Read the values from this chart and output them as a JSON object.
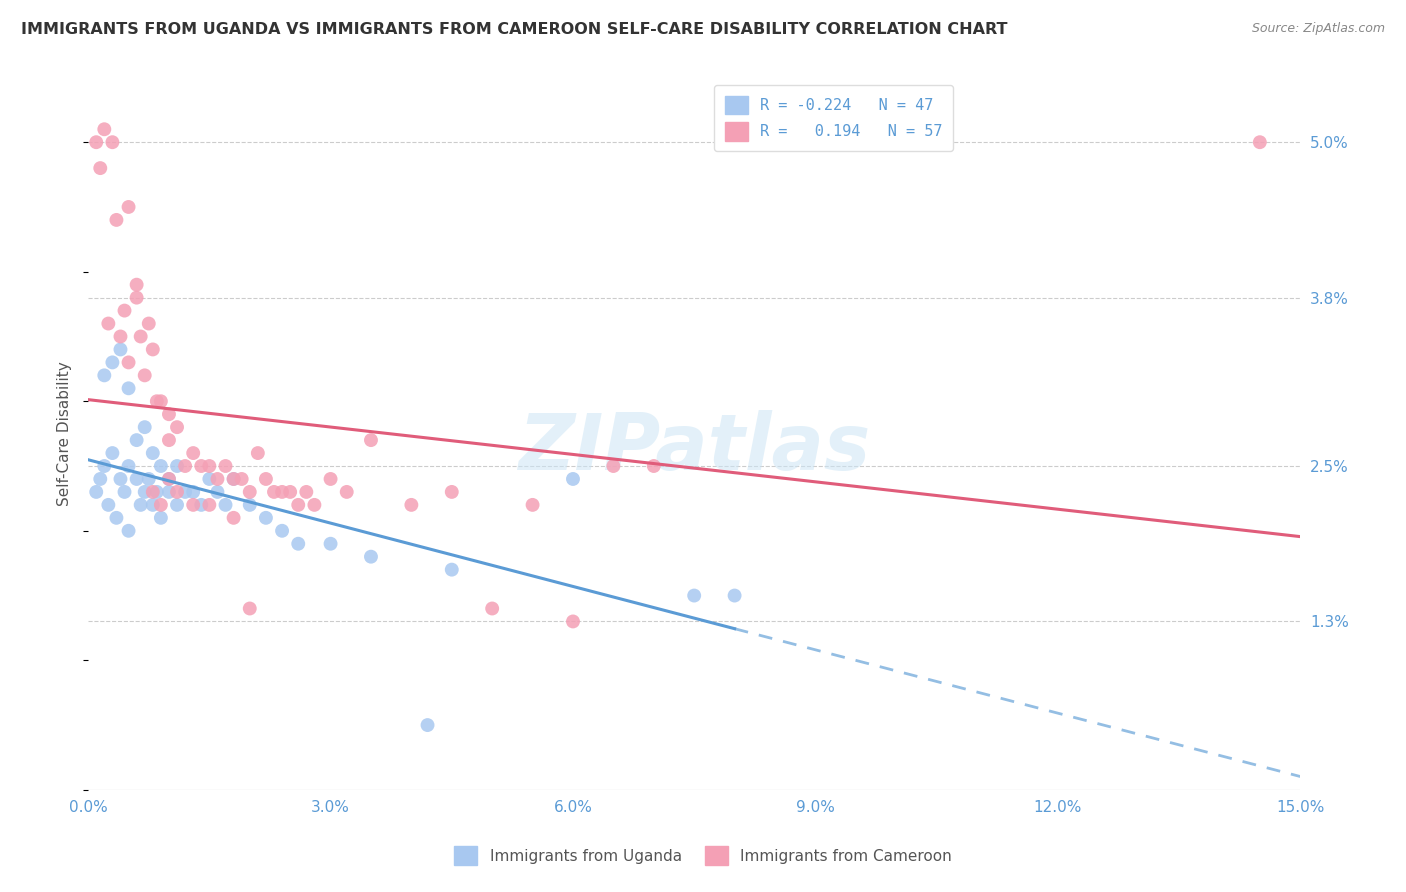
{
  "title": "IMMIGRANTS FROM UGANDA VS IMMIGRANTS FROM CAMEROON SELF-CARE DISABILITY CORRELATION CHART",
  "source": "Source: ZipAtlas.com",
  "xlabel_vals": [
    0.0,
    3.0,
    6.0,
    9.0,
    12.0,
    15.0
  ],
  "ylabel_right": [
    "5.0%",
    "3.8%",
    "2.5%",
    "1.3%"
  ],
  "ylabel_right_vals": [
    5.0,
    3.8,
    2.5,
    1.3
  ],
  "xlim": [
    0.0,
    15.0
  ],
  "ylim": [
    0.0,
    5.5
  ],
  "legend_R_uganda": "-0.224",
  "legend_N_uganda": "47",
  "legend_R_cameroon": "0.194",
  "legend_N_cameroon": "57",
  "color_uganda": "#a8c8f0",
  "color_cameroon": "#f4a0b5",
  "color_uganda_line": "#5b9bd5",
  "color_cameroon_line": "#e05c7a",
  "watermark": "ZIPatlas",
  "uganda_x": [
    0.1,
    0.15,
    0.2,
    0.2,
    0.25,
    0.3,
    0.3,
    0.35,
    0.4,
    0.4,
    0.45,
    0.5,
    0.5,
    0.5,
    0.6,
    0.6,
    0.65,
    0.7,
    0.7,
    0.75,
    0.8,
    0.8,
    0.85,
    0.9,
    0.9,
    1.0,
    1.0,
    1.1,
    1.1,
    1.2,
    1.3,
    1.4,
    1.5,
    1.6,
    1.7,
    1.8,
    2.0,
    2.2,
    2.4,
    2.6,
    3.0,
    3.5,
    4.5,
    6.0,
    7.5,
    8.0,
    4.2
  ],
  "uganda_y": [
    2.3,
    2.4,
    2.5,
    3.2,
    2.2,
    2.6,
    3.3,
    2.1,
    2.4,
    3.4,
    2.3,
    2.5,
    3.1,
    2.0,
    2.7,
    2.4,
    2.2,
    2.8,
    2.3,
    2.4,
    2.6,
    2.2,
    2.3,
    2.5,
    2.1,
    2.4,
    2.3,
    2.5,
    2.2,
    2.3,
    2.3,
    2.2,
    2.4,
    2.3,
    2.2,
    2.4,
    2.2,
    2.1,
    2.0,
    1.9,
    1.9,
    1.8,
    1.7,
    2.4,
    1.5,
    1.5,
    0.5
  ],
  "cameroon_x": [
    0.1,
    0.15,
    0.2,
    0.25,
    0.3,
    0.35,
    0.4,
    0.45,
    0.5,
    0.5,
    0.6,
    0.6,
    0.65,
    0.7,
    0.75,
    0.8,
    0.85,
    0.9,
    1.0,
    1.0,
    1.1,
    1.2,
    1.3,
    1.4,
    1.5,
    1.6,
    1.7,
    1.8,
    1.9,
    2.0,
    2.1,
    2.2,
    2.3,
    2.4,
    2.5,
    2.6,
    2.7,
    2.8,
    3.0,
    3.2,
    3.5,
    4.0,
    4.5,
    5.0,
    5.5,
    6.0,
    6.5,
    7.0,
    0.8,
    0.9,
    1.0,
    1.1,
    1.3,
    1.5,
    1.8,
    2.0,
    14.5
  ],
  "cameroon_y": [
    5.0,
    4.8,
    5.1,
    3.6,
    5.0,
    4.4,
    3.5,
    3.7,
    4.5,
    3.3,
    3.8,
    3.9,
    3.5,
    3.2,
    3.6,
    3.4,
    3.0,
    3.0,
    2.7,
    2.9,
    2.8,
    2.5,
    2.6,
    2.5,
    2.5,
    2.4,
    2.5,
    2.4,
    2.4,
    2.3,
    2.6,
    2.4,
    2.3,
    2.3,
    2.3,
    2.2,
    2.3,
    2.2,
    2.4,
    2.3,
    2.7,
    2.2,
    2.3,
    1.4,
    2.2,
    1.3,
    2.5,
    2.5,
    2.3,
    2.2,
    2.4,
    2.3,
    2.2,
    2.2,
    2.1,
    1.4,
    5.0
  ]
}
